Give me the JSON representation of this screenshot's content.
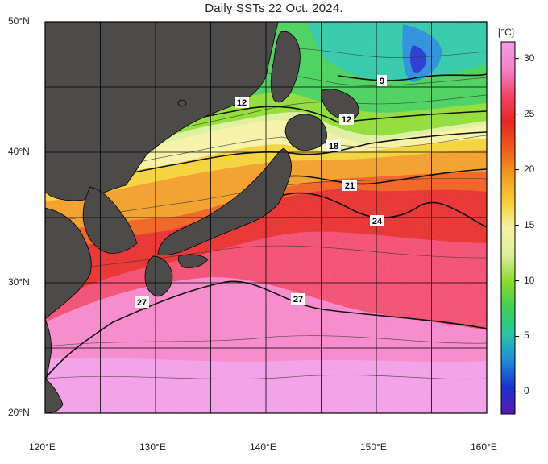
{
  "title": "Daily SSTs 22 Oct. 2024.",
  "map": {
    "lon_range": [
      120,
      160
    ],
    "lat_range": [
      20,
      50
    ],
    "lon_ticks": [
      {
        "value": 120,
        "label": "120°E"
      },
      {
        "value": 130,
        "label": "130°E"
      },
      {
        "value": 140,
        "label": "140°E"
      },
      {
        "value": 150,
        "label": "150°E"
      },
      {
        "value": 160,
        "label": "160°E"
      }
    ],
    "lat_ticks": [
      {
        "value": 50,
        "label": "50°N"
      },
      {
        "value": 40,
        "label": "40°N"
      },
      {
        "value": 30,
        "label": "30°N"
      },
      {
        "value": 20,
        "label": "20°N"
      }
    ],
    "grid_step_degrees": 5,
    "land_color": "#4d4a4a",
    "contour_labels": [
      "9",
      "12",
      "12",
      "18",
      "21",
      "24",
      "27",
      "27"
    ]
  },
  "colorbar": {
    "unit": "[°C]",
    "range": [
      -2,
      31.5
    ],
    "ticks": [
      "30",
      "25",
      "20",
      "15",
      "10",
      "5",
      "0"
    ],
    "colors": [
      "#5a19b4",
      "#1b2fd0",
      "#1f8ad8",
      "#27c6a6",
      "#3fcf55",
      "#8bdb2c",
      "#dcef9a",
      "#f5f2a0",
      "#f4d030",
      "#f29a1e",
      "#ef5a16",
      "#e72624",
      "#f2456a",
      "#f582c8",
      "#f29ae6"
    ]
  }
}
